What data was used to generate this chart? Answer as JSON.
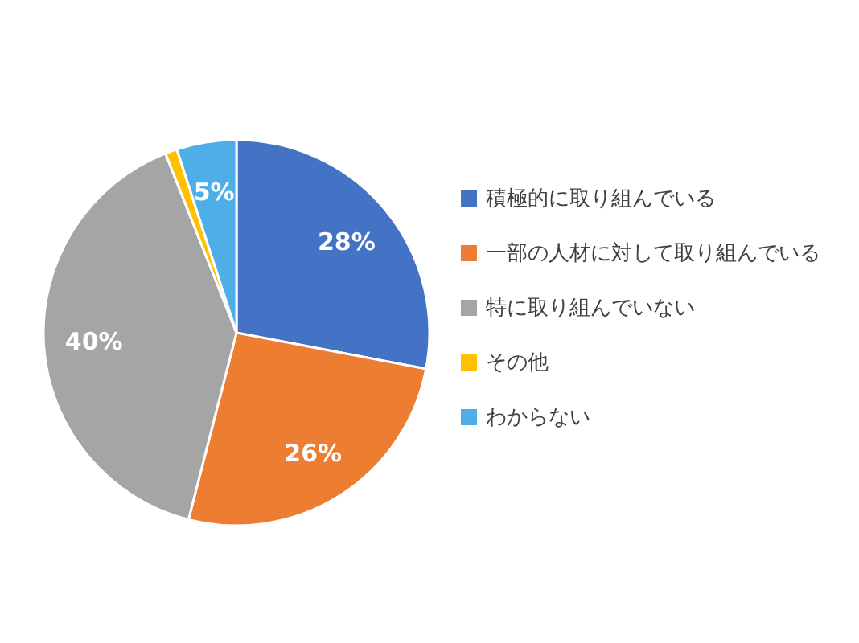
{
  "chart_data": {
    "type": "pie",
    "categories": [
      "積極的に取り組んでいる",
      "一部の人材に対して取り組んでいる",
      "特に取り組んでいない",
      "その他",
      "わからない"
    ],
    "values": [
      28,
      26,
      40,
      1,
      5
    ],
    "colors": [
      "#4472c4",
      "#ed7d31",
      "#a5a5a5",
      "#ffc000",
      "#4daee8"
    ],
    "value_labels": [
      "28%",
      "26%",
      "40%",
      null,
      "5%"
    ],
    "legend": "right"
  }
}
